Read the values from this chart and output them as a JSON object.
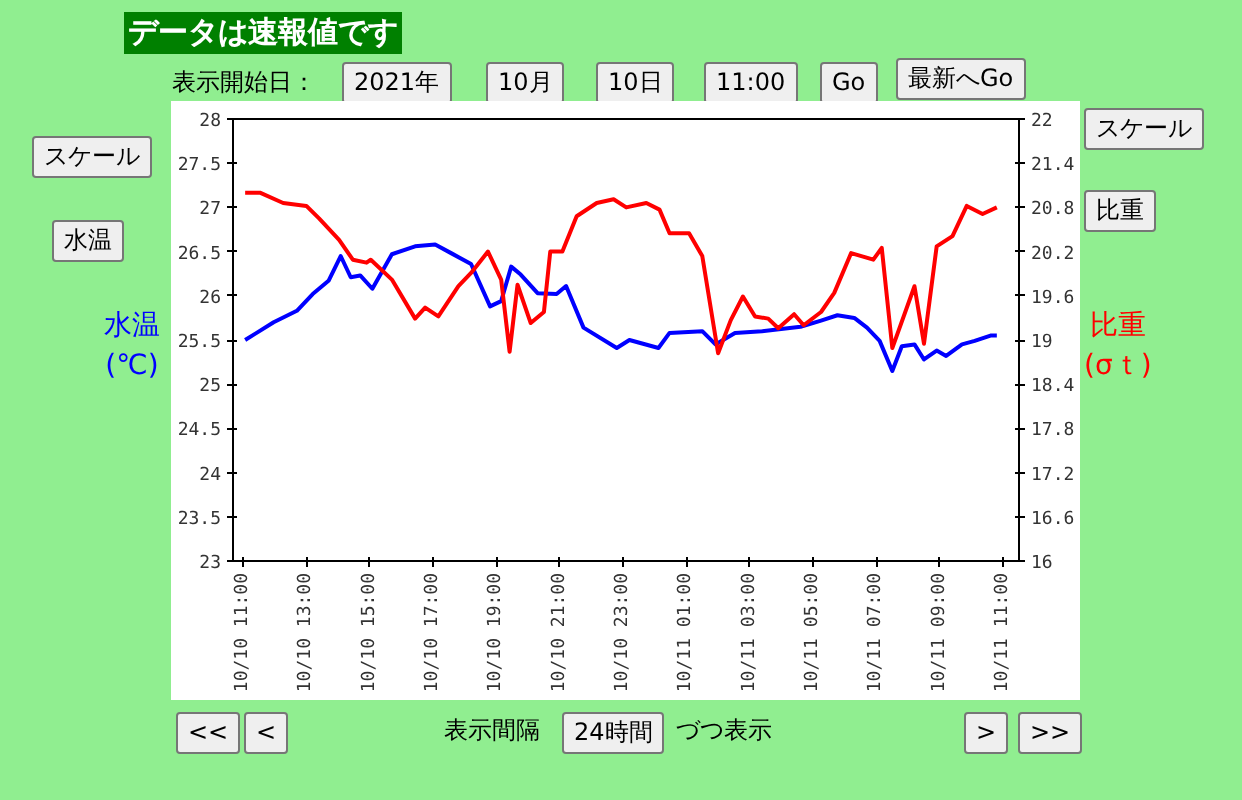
{
  "chart_data": {
    "type": "line",
    "title": "データは速報値です",
    "ylabel": "水温\n(℃)",
    "y2label": "比重\n(σｔ)",
    "annotations": [
      "表示開始日：",
      "2021年",
      "10月",
      "10日",
      "11:00",
      "Go",
      "最新へGo",
      "スケール",
      "スケール",
      "水温",
      "比重",
      "<<",
      "<",
      "表示間隔",
      "24時間",
      "づつ表示",
      ">",
      ">>"
    ],
    "xlim": [
      "2021-10-10T10:41",
      "2021-10-11T11:30"
    ],
    "xticks": [
      {
        "value": "2021-10-10T11:00",
        "label": "10/10 11:00"
      },
      {
        "value": "2021-10-10T13:00",
        "label": "10/10 13:00"
      },
      {
        "value": "2021-10-10T15:00",
        "label": "10/10 15:00"
      },
      {
        "value": "2021-10-10T17:00",
        "label": "10/10 17:00"
      },
      {
        "value": "2021-10-10T19:00",
        "label": "10/10 19:00"
      },
      {
        "value": "2021-10-10T21:00",
        "label": "10/10 21:00"
      },
      {
        "value": "2021-10-10T23:00",
        "label": "10/10 23:00"
      },
      {
        "value": "2021-10-11T01:00",
        "label": "10/11 01:00"
      },
      {
        "value": "2021-10-11T03:00",
        "label": "10/11 03:00"
      },
      {
        "value": "2021-10-11T05:00",
        "label": "10/11 05:00"
      },
      {
        "value": "2021-10-11T07:00",
        "label": "10/11 07:00"
      },
      {
        "value": "2021-10-11T09:00",
        "label": "10/11 09:00"
      },
      {
        "value": "2021-10-11T11:00",
        "label": "10/11 11:00"
      }
    ],
    "ylim": [
      23,
      28
    ],
    "yticks": [
      23,
      23.5,
      24,
      24.5,
      25,
      25.5,
      26,
      26.5,
      27,
      27.5,
      28
    ],
    "y2lim": [
      16,
      22
    ],
    "y2ticks": [
      16,
      16.6,
      17.2,
      17.8,
      18.4,
      19,
      19.6,
      20.2,
      20.8,
      21.4,
      22
    ],
    "grid": false,
    "line_style": "solid",
    "series": [
      {
        "color": "#0000ff",
        "x": [
          "2021-10-10T11:04",
          "2021-10-10T11:58",
          "2021-10-10T12:42",
          "2021-10-10T13:12",
          "2021-10-10T13:42",
          "2021-10-10T14:05",
          "2021-10-10T14:24",
          "2021-10-10T14:42",
          "2021-10-10T15:05",
          "2021-10-10T15:42",
          "2021-10-10T16:26",
          "2021-10-10T17:04",
          "2021-10-10T17:35",
          "2021-10-10T18:12",
          "2021-10-10T18:48",
          "2021-10-10T19:09",
          "2021-10-10T19:28",
          "2021-10-10T19:46",
          "2021-10-10T20:18",
          "2021-10-10T20:54",
          "2021-10-10T21:12",
          "2021-10-10T21:45",
          "2021-10-10T22:48",
          "2021-10-10T23:12",
          "2021-10-11T00:07",
          "2021-10-11T00:28",
          "2021-10-11T01:30",
          "2021-10-11T01:55",
          "2021-10-11T02:32",
          "2021-10-11T03:23",
          "2021-10-11T04:36",
          "2021-10-11T05:15",
          "2021-10-11T05:46",
          "2021-10-11T06:18",
          "2021-10-11T06:42",
          "2021-10-11T07:06",
          "2021-10-11T07:30",
          "2021-10-11T07:48",
          "2021-10-11T08:12",
          "2021-10-11T08:30",
          "2021-10-11T08:54",
          "2021-10-11T09:12",
          "2021-10-11T09:42",
          "2021-10-11T10:06",
          "2021-10-11T10:36",
          "2021-10-11T10:48"
        ],
        "values": [
          25.5,
          25.7,
          25.83,
          26.02,
          26.17,
          26.45,
          26.21,
          26.23,
          26.08,
          26.47,
          26.56,
          26.58,
          26.48,
          26.36,
          25.88,
          25.94,
          26.33,
          26.24,
          26.03,
          26.02,
          26.11,
          25.64,
          25.41,
          25.5,
          25.41,
          25.58,
          25.6,
          25.45,
          25.58,
          25.6,
          25.65,
          25.72,
          25.78,
          25.75,
          25.64,
          25.49,
          25.15,
          25.43,
          25.45,
          25.28,
          25.38,
          25.32,
          25.45,
          25.49,
          25.55,
          25.55
        ]
      },
      {
        "color": "#ff0000",
        "axis": "y2",
        "x": [
          "2021-10-10T11:04",
          "2021-10-10T11:32",
          "2021-10-10T12:16",
          "2021-10-10T13:00",
          "2021-10-10T13:24",
          "2021-10-10T14:02",
          "2021-10-10T14:28",
          "2021-10-10T14:54",
          "2021-10-10T15:02",
          "2021-10-10T15:42",
          "2021-10-10T16:26",
          "2021-10-10T16:45",
          "2021-10-10T17:10",
          "2021-10-10T17:48",
          "2021-10-10T18:12",
          "2021-10-10T18:44",
          "2021-10-10T19:09",
          "2021-10-10T19:25",
          "2021-10-10T19:40",
          "2021-10-10T20:05",
          "2021-10-10T20:30",
          "2021-10-10T20:42",
          "2021-10-10T21:05",
          "2021-10-10T21:32",
          "2021-10-10T22:10",
          "2021-10-10T22:42",
          "2021-10-10T23:06",
          "2021-10-10T23:44",
          "2021-10-11T00:09",
          "2021-10-11T00:28",
          "2021-10-11T01:05",
          "2021-10-11T01:30",
          "2021-10-11T02:00",
          "2021-10-11T02:24",
          "2021-10-11T02:47",
          "2021-10-11T03:10",
          "2021-10-11T03:35",
          "2021-10-11T03:54",
          "2021-10-11T04:24",
          "2021-10-11T04:42",
          "2021-10-11T05:15",
          "2021-10-11T05:40",
          "2021-10-11T06:12",
          "2021-10-11T06:54",
          "2021-10-11T07:10",
          "2021-10-11T07:30",
          "2021-10-11T08:12",
          "2021-10-11T08:30",
          "2021-10-11T08:54",
          "2021-10-11T09:24",
          "2021-10-11T09:51",
          "2021-10-11T10:21",
          "2021-10-11T10:48"
        ],
        "values": [
          21.0,
          21.0,
          20.86,
          20.82,
          20.65,
          20.36,
          20.09,
          20.05,
          20.09,
          19.82,
          19.29,
          19.44,
          19.32,
          19.73,
          19.91,
          20.2,
          19.82,
          18.84,
          19.75,
          19.23,
          19.38,
          20.2,
          20.2,
          20.68,
          20.86,
          20.91,
          20.8,
          20.86,
          20.77,
          20.45,
          20.45,
          20.14,
          18.82,
          19.27,
          19.59,
          19.32,
          19.29,
          19.16,
          19.35,
          19.2,
          19.38,
          19.64,
          20.18,
          20.09,
          20.25,
          18.89,
          19.73,
          18.95,
          20.27,
          20.41,
          20.82,
          20.71,
          20.8
        ]
      }
    ]
  }
}
